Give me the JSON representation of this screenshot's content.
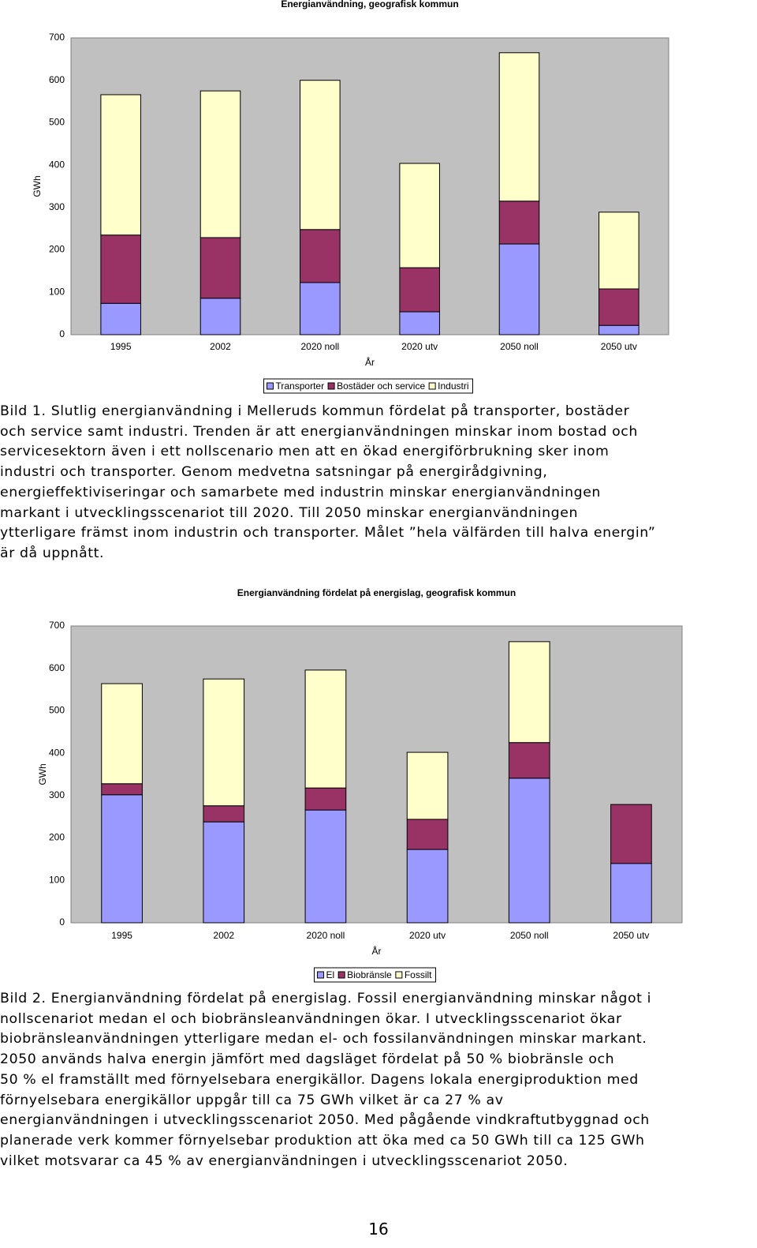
{
  "chart_data": [
    {
      "type": "stacked-bar",
      "title": "Energianvändning, geografisk kommun",
      "y_label": "GWh",
      "x_label": "År",
      "categories": [
        "1995",
        "2002",
        "2020 noll",
        "2020 utv",
        "2050 noll",
        "2050 utv"
      ],
      "series": [
        {
          "name": "Transporter",
          "color": "#9999ff",
          "values": [
            74,
            86,
            123,
            54,
            214,
            22
          ]
        },
        {
          "name": "Bostäder och service",
          "color": "#993366",
          "values": [
            161,
            143,
            125,
            104,
            101,
            86
          ]
        },
        {
          "name": "Industri",
          "color": "#ffffcc",
          "values": [
            331,
            346,
            352,
            246,
            350,
            181
          ]
        }
      ],
      "ylim": [
        0,
        700
      ],
      "yticks": [
        0,
        100,
        200,
        300,
        400,
        500,
        600,
        700
      ],
      "grid": false
    },
    {
      "type": "stacked-bar",
      "title": "Energianvändning fördelat på energislag, geografisk kommun",
      "y_label": "GWh",
      "x_label": "År",
      "categories": [
        "1995",
        "2002",
        "2020 noll",
        "2020 utv",
        "2050 noll",
        "2050 utv"
      ],
      "series": [
        {
          "name": "El",
          "color": "#9999ff",
          "values": [
            302,
            238,
            266,
            173,
            341,
            140
          ]
        },
        {
          "name": "Biobränsle",
          "color": "#993366",
          "values": [
            26,
            38,
            52,
            71,
            84,
            139
          ]
        },
        {
          "name": "Fossilt",
          "color": "#ffffcc",
          "values": [
            236,
            299,
            278,
            158,
            238,
            0
          ]
        }
      ],
      "ylim": [
        0,
        700
      ],
      "yticks": [
        0,
        100,
        200,
        300,
        400,
        500,
        600,
        700
      ],
      "grid": false
    }
  ],
  "captions": [
    [
      "Bild 1. Slutlig energianvändning i Melleruds kommun fördelat på transporter, bostäder",
      "och service samt industri. Trenden är att energianvändningen minskar inom bostad och",
      "servicesektorn även i ett nollscenario men att en ökad energiförbrukning sker inom",
      "industri och transporter. Genom medvetna satsningar på energirådgivning,",
      "energieffektiviseringar och samarbete med industrin minskar energianvändningen",
      "markant i utvecklingsscenariot till 2020. Till 2050 minskar energianvändningen",
      "ytterligare främst inom industrin och transporter. Målet ”hela välfärden till halva energin”",
      "är då uppnått."
    ],
    [
      "Bild 2. Energianvändning fördelat på energislag. Fossil energianvändning minskar något i",
      "nollscenariot medan el och biobränsleanvändningen ökar. I utvecklingsscenariot ökar",
      "biobränsleanvändningen ytterligare medan el- och fossilanvändningen minskar markant.",
      "2050 används halva energin jämfört med dagsläget fördelat på 50 % biobränsle och",
      "50 % el framställt med förnyelsebara energikällor. Dagens lokala energiproduktion med",
      "förnyelsebara energikällor uppgår till ca 75 GWh vilket är ca 27 % av",
      "energianvändningen i utvecklingsscenariot 2050. Med pågående vindkraftutbyggnad och",
      "planerade verk kommer förnyelsebar produktion att öka med ca 50 GWh till ca 125 GWh",
      "vilket motsvarar ca 45 % av energianvändningen i utvecklingsscenariot 2050."
    ]
  ],
  "page_number": "16"
}
